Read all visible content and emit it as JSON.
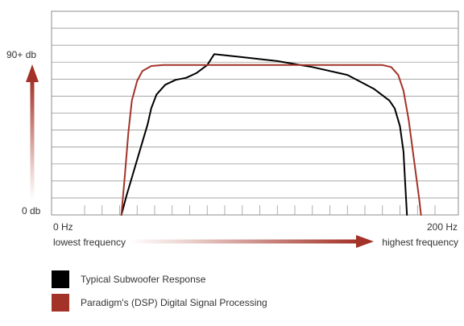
{
  "chart_data": {
    "type": "line",
    "y_axis": {
      "top_label": "90+ db",
      "bottom_label": "0 db"
    },
    "x_axis": {
      "start_label": "0 Hz",
      "end_label": "200 Hz",
      "left_caption": "lowest frequency",
      "right_caption": "highest frequency"
    },
    "x_range": [
      0,
      200
    ],
    "y_range": [
      0,
      100
    ],
    "grid": true,
    "minor_ticks": 20,
    "series": [
      {
        "name": "Typical Subwoofer Response",
        "color": "#000000",
        "points": [
          [
            21,
            0
          ],
          [
            24,
            10
          ],
          [
            28,
            22
          ],
          [
            32,
            34
          ],
          [
            36,
            46
          ],
          [
            38,
            54
          ],
          [
            41,
            61
          ],
          [
            46,
            66
          ],
          [
            52,
            68.5
          ],
          [
            58,
            69.5
          ],
          [
            64,
            72
          ],
          [
            70,
            76
          ],
          [
            74,
            81.5
          ],
          [
            90,
            80
          ],
          [
            110,
            78
          ],
          [
            130,
            75
          ],
          [
            150,
            71
          ],
          [
            165,
            64
          ],
          [
            174,
            58
          ],
          [
            177,
            54
          ],
          [
            180,
            45
          ],
          [
            182,
            32
          ],
          [
            183,
            16
          ],
          [
            184,
            0
          ]
        ]
      },
      {
        "name": "Paradigm's (DSP) Digital Signal Processing",
        "color": "#a33328",
        "points": [
          [
            21,
            0
          ],
          [
            23,
            20
          ],
          [
            25,
            42
          ],
          [
            27,
            58
          ],
          [
            30,
            68
          ],
          [
            33,
            73
          ],
          [
            38,
            75.5
          ],
          [
            45,
            76
          ],
          [
            100,
            76
          ],
          [
            150,
            76
          ],
          [
            170,
            76
          ],
          [
            175,
            75
          ],
          [
            179,
            71
          ],
          [
            182,
            63
          ],
          [
            185,
            48
          ],
          [
            188,
            28
          ],
          [
            191,
            8
          ],
          [
            192,
            0
          ]
        ]
      }
    ]
  },
  "legend": {
    "colors": {
      "subwoofer": "#000000",
      "dsp": "#a33328"
    }
  }
}
